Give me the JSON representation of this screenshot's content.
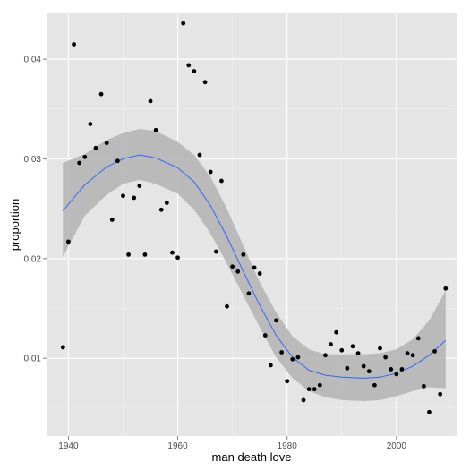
{
  "chart_data": {
    "type": "scatter",
    "xlabel": "man death love",
    "ylabel": "proportion",
    "xlim": [
      1936,
      2011
    ],
    "ylim": [
      0.0022,
      0.0446
    ],
    "x_ticks": [
      1940,
      1960,
      1980,
      2000
    ],
    "y_ticks": [
      0.01,
      0.02,
      0.03,
      0.04
    ],
    "x_tick_labels": [
      "1940",
      "1960",
      "1980",
      "2000"
    ],
    "y_tick_labels": [
      "0.01",
      "0.02",
      "0.03",
      "0.04"
    ],
    "grid": true,
    "colors": {
      "panel": "#e5e5e5",
      "grid": "#ffffff",
      "points": "#000000",
      "smooth_line": "#3366ff",
      "confidence_band": "#b3b3b3"
    },
    "points": [
      [
        1939,
        0.0111
      ],
      [
        1940,
        0.0217
      ],
      [
        1941,
        0.0415
      ],
      [
        1942,
        0.0296
      ],
      [
        1943,
        0.0302
      ],
      [
        1944,
        0.0335
      ],
      [
        1945,
        0.0311
      ],
      [
        1946,
        0.0365
      ],
      [
        1947,
        0.0316
      ],
      [
        1948,
        0.0239
      ],
      [
        1949,
        0.0298
      ],
      [
        1950,
        0.0263
      ],
      [
        1951,
        0.0204
      ],
      [
        1952,
        0.0261
      ],
      [
        1953,
        0.0273
      ],
      [
        1954,
        0.0204
      ],
      [
        1955,
        0.0358
      ],
      [
        1956,
        0.0329
      ],
      [
        1957,
        0.0249
      ],
      [
        1958,
        0.0256
      ],
      [
        1959,
        0.0206
      ],
      [
        1960,
        0.0201
      ],
      [
        1961,
        0.0436
      ],
      [
        1962,
        0.0394
      ],
      [
        1963,
        0.0388
      ],
      [
        1964,
        0.0304
      ],
      [
        1965,
        0.0377
      ],
      [
        1966,
        0.0287
      ],
      [
        1967,
        0.0207
      ],
      [
        1968,
        0.0278
      ],
      [
        1969,
        0.0152
      ],
      [
        1970,
        0.0192
      ],
      [
        1971,
        0.0187
      ],
      [
        1972,
        0.0204
      ],
      [
        1973,
        0.0165
      ],
      [
        1974,
        0.0191
      ],
      [
        1975,
        0.0185
      ],
      [
        1976,
        0.0123
      ],
      [
        1977,
        0.0093
      ],
      [
        1978,
        0.0138
      ],
      [
        1979,
        0.0106
      ],
      [
        1980,
        0.0077
      ],
      [
        1981,
        0.0099
      ],
      [
        1982,
        0.0101
      ],
      [
        1983,
        0.0058
      ],
      [
        1984,
        0.0069
      ],
      [
        1985,
        0.0069
      ],
      [
        1986,
        0.0073
      ],
      [
        1987,
        0.0103
      ],
      [
        1988,
        0.0114
      ],
      [
        1989,
        0.0126
      ],
      [
        1990,
        0.0108
      ],
      [
        1991,
        0.009
      ],
      [
        1992,
        0.0112
      ],
      [
        1993,
        0.0105
      ],
      [
        1994,
        0.0092
      ],
      [
        1995,
        0.0087
      ],
      [
        1996,
        0.0073
      ],
      [
        1997,
        0.011
      ],
      [
        1998,
        0.0101
      ],
      [
        1999,
        0.0089
      ],
      [
        2000,
        0.0084
      ],
      [
        2001,
        0.0089
      ],
      [
        2002,
        0.0105
      ],
      [
        2003,
        0.0103
      ],
      [
        2004,
        0.012
      ],
      [
        2005,
        0.0072
      ],
      [
        2006,
        0.0046
      ],
      [
        2007,
        0.0107
      ],
      [
        2008,
        0.0064
      ],
      [
        2009,
        0.017
      ]
    ],
    "smooth": {
      "x": [
        1939,
        1943,
        1947,
        1950,
        1953,
        1956,
        1960,
        1963,
        1966,
        1969,
        1972,
        1975,
        1978,
        1981,
        1984,
        1987,
        1990,
        1994,
        1997,
        2000,
        2003,
        2006,
        2009
      ],
      "fit": [
        0.0248,
        0.0274,
        0.0292,
        0.03,
        0.0304,
        0.0301,
        0.0291,
        0.0277,
        0.0253,
        0.0222,
        0.0187,
        0.0153,
        0.0123,
        0.0101,
        0.0088,
        0.0083,
        0.0081,
        0.008,
        0.0081,
        0.0085,
        0.0092,
        0.0103,
        0.0118
      ],
      "lower": [
        0.0202,
        0.0243,
        0.0264,
        0.0275,
        0.0279,
        0.0275,
        0.0265,
        0.0249,
        0.0225,
        0.0195,
        0.0163,
        0.0131,
        0.0101,
        0.008,
        0.0067,
        0.0061,
        0.0058,
        0.0057,
        0.0058,
        0.0062,
        0.0067,
        0.0071,
        0.007
      ],
      "upper": [
        0.0296,
        0.0305,
        0.0319,
        0.0326,
        0.033,
        0.0328,
        0.0317,
        0.0304,
        0.0282,
        0.025,
        0.0213,
        0.0176,
        0.0146,
        0.0122,
        0.0109,
        0.0104,
        0.0104,
        0.0104,
        0.0105,
        0.0109,
        0.0119,
        0.0138,
        0.0168
      ]
    }
  }
}
